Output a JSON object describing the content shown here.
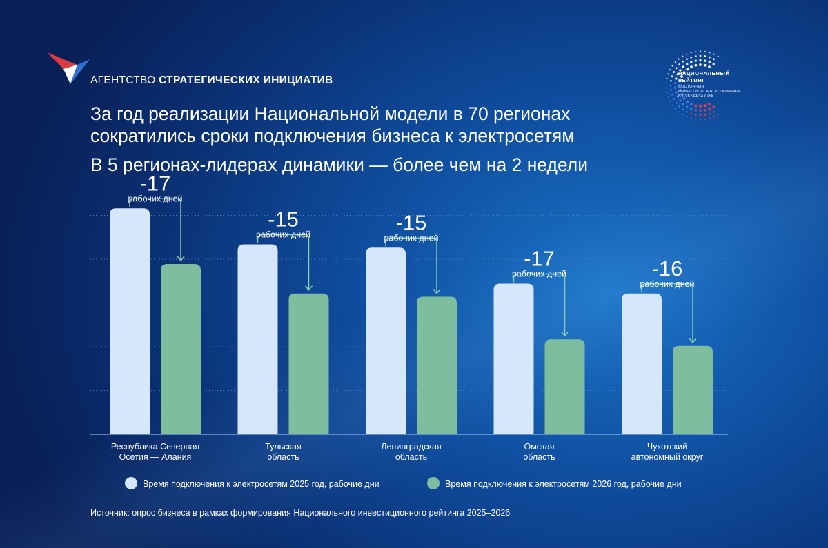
{
  "header": {
    "agency_light": "АГЕНТСТВО",
    "agency_bold": "СТРАТЕГИЧЕСКИХ ИНИЦИАТИВ",
    "rating_line1": "НАЦИОНАЛЬНЫЙ",
    "rating_line2": "РЕЙТИНГ",
    "rating_line3": "СОСТОЯНИЯ ИНВЕСТИЦИОННОГО КЛИМАТА В СУБЪЕКТАХ РФ"
  },
  "title_line1": "За год реализации Национальной модели в 70 регионах",
  "title_line2": "сократились сроки подключения бизнеса к электросетям",
  "subtitle": "В 5 регионах-лидерах динамики — более чем на 2 недели",
  "source_note": "Источник: опрос бизнеса в рамках формирования Национального инвестиционного рейтинга 2025–2026",
  "colors": {
    "bar_2025": "#d6e7fb",
    "bar_2026": "#7fbd9f",
    "connector": "#8fd0b2",
    "grid": "#4e7fc0",
    "background": "#0f4d9e"
  },
  "chart_data": {
    "type": "bar",
    "categories": [
      [
        "Республика Северная",
        "Осетия — Алания"
      ],
      [
        "Тульская",
        "область"
      ],
      [
        "Ленинградская",
        "область"
      ],
      [
        "Омская",
        "область"
      ],
      [
        "Чукотский",
        "автономный округ"
      ]
    ],
    "series": [
      {
        "name": "Время подключения к электросетям 2025 год, рабочие дни",
        "values": [
          69,
          58,
          57,
          46,
          43
        ]
      },
      {
        "name": "Время подключения к электросетям 2026 год, рабочие дни",
        "values": [
          52,
          43,
          42,
          29,
          27
        ]
      }
    ],
    "annotations": [
      {
        "value": "-17",
        "unit": "рабочих дней"
      },
      {
        "value": "-15",
        "unit": "рабочих дней"
      },
      {
        "value": "-15",
        "unit": "рабочих дней"
      },
      {
        "value": "-17",
        "unit": "рабочих дней"
      },
      {
        "value": "-16",
        "unit": "рабочих дней"
      }
    ],
    "ylim": [
      0,
      80
    ],
    "grid": true,
    "legend": "bottom"
  }
}
